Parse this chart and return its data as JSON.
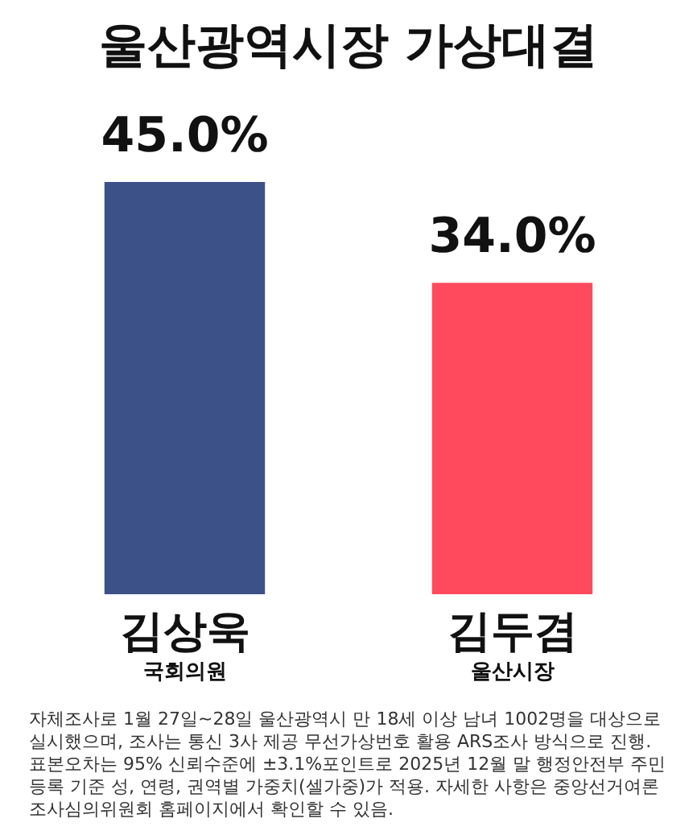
{
  "chart_data": {
    "type": "bar",
    "title": "울산광역시장 가상대결",
    "categories": [
      "김상욱\n국회의원",
      "김두겸\n울산시장"
    ],
    "values": [
      45.0,
      34.0
    ],
    "colors": [
      "#3d5189",
      "#ff4a5d"
    ],
    "value_labels": [
      "45.0%",
      "34.0%"
    ],
    "legend": false,
    "annotations": [
      "자체조사로 1월 27일~28일 울산광역시 만 18세 이상 남녀 1002명을 대상으로 실시했으며, 조사는 통신 3사 제공 무선가상번호 활용 ARS조사 방식으로 진행. 표본오차는 95% 신뢰수준에 ±3.1%포인트로 2025년 12월 말 행정안전부 주민등록 기준 성, 연령, 권역별 가중치(셀가중)가 적용. 자세한 사항은 중앙선거여론조사심의위원회 홈페이지에서 확인할 수 있음."
    ]
  }
}
